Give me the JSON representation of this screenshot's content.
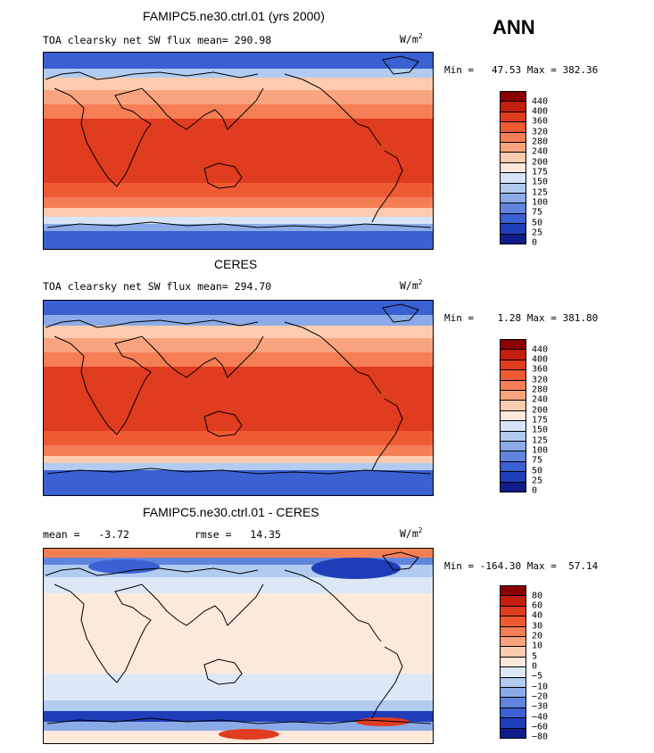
{
  "season": "ANN",
  "chart_data": [
    {
      "type": "heatmap",
      "title": "FAMIPC5.ne30.ctrl.01 (yrs 2000)",
      "field_label": "TOA clearsky net SW flux",
      "mean_label": "mean=",
      "mean_value": "290.98",
      "units_base": "W/m",
      "units_exp": "2",
      "min_label": "Min =",
      "min_value": "47.53",
      "max_label": "Max =",
      "max_value": "382.36",
      "colorbar_levels": [
        "440",
        "400",
        "360",
        "320",
        "280",
        "240",
        "200",
        "175",
        "150",
        "125",
        "100",
        "75",
        "50",
        "25",
        "0"
      ],
      "colorbar_colors": [
        "#8b0000",
        "#c41e0f",
        "#e03c1f",
        "#f05a32",
        "#f57e55",
        "#f9a47f",
        "#fccbb0",
        "#fde9dc",
        "#d7e4f7",
        "#b2cbf0",
        "#8aabe8",
        "#5f86dc",
        "#3a60d2",
        "#1f3db8",
        "#0f1c8a"
      ]
    },
    {
      "type": "heatmap",
      "title": "CERES",
      "field_label": "TOA clearsky net SW flux",
      "mean_label": "mean=",
      "mean_value": "294.70",
      "units_base": "W/m",
      "units_exp": "2",
      "min_label": "Min =",
      "min_value": "1.28",
      "max_label": "Max =",
      "max_value": "381.80",
      "colorbar_levels": [
        "440",
        "400",
        "360",
        "320",
        "280",
        "240",
        "200",
        "175",
        "150",
        "125",
        "100",
        "75",
        "50",
        "25",
        "0"
      ],
      "colorbar_colors": [
        "#8b0000",
        "#c41e0f",
        "#e03c1f",
        "#f05a32",
        "#f57e55",
        "#f9a47f",
        "#fccbb0",
        "#fde9dc",
        "#d7e4f7",
        "#b2cbf0",
        "#8aabe8",
        "#5f86dc",
        "#3a60d2",
        "#1f3db8",
        "#0f1c8a"
      ]
    },
    {
      "type": "heatmap",
      "title": "FAMIPC5.ne30.ctrl.01 - CERES",
      "mean_label": "mean =",
      "mean_value": "-3.72",
      "rmse_label": "rmse =",
      "rmse_value": "14.35",
      "units_base": "W/m",
      "units_exp": "2",
      "min_label": "Min =",
      "min_value": "-164.30",
      "max_label": "Max =",
      "max_value": "57.14",
      "colorbar_levels": [
        "80",
        "60",
        "40",
        "30",
        "20",
        "10",
        "5",
        "0",
        "-5",
        "-10",
        "-20",
        "-30",
        "-40",
        "-60",
        "-80"
      ],
      "colorbar_colors": [
        "#8b0000",
        "#c41e0f",
        "#e03c1f",
        "#f05a32",
        "#f57e55",
        "#f9a47f",
        "#fccbb0",
        "#fde9dc",
        "#dde8f7",
        "#b2cbf0",
        "#8aabe8",
        "#5f86dc",
        "#3a60d2",
        "#1f3db8",
        "#0f1c8a"
      ]
    }
  ]
}
